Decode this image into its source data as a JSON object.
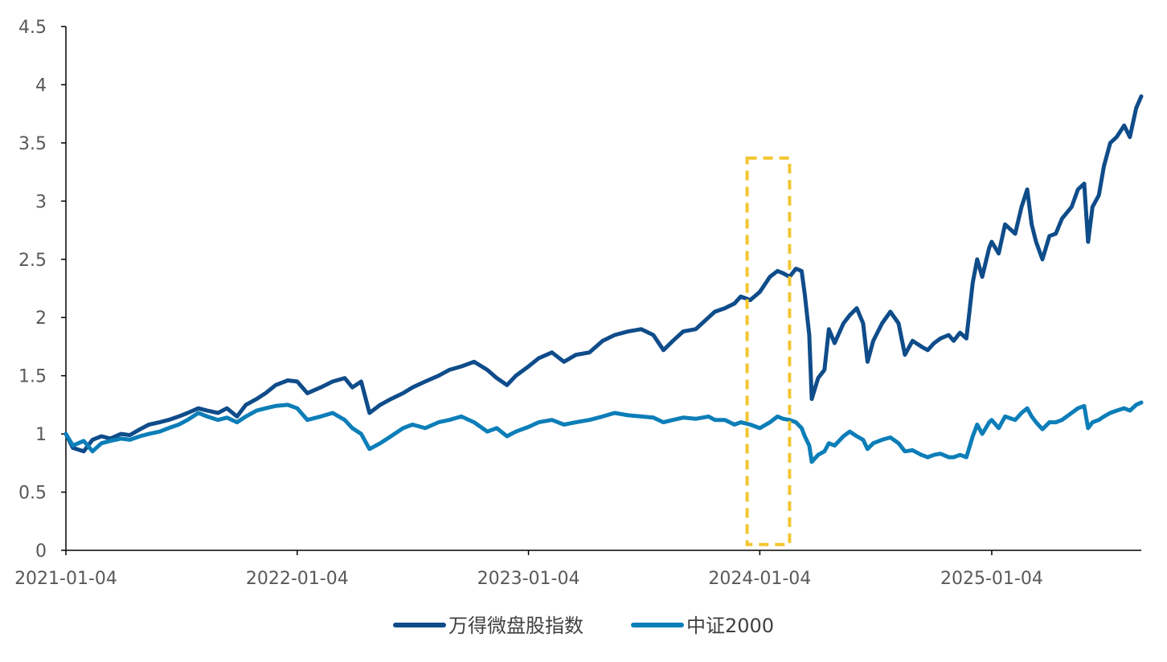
{
  "chart_data": {
    "type": "line",
    "title": "",
    "xlabel": "",
    "ylabel": "",
    "ylim": [
      0,
      4.5
    ],
    "yticks": [
      "0",
      "0.5",
      "1",
      "1.5",
      "2",
      "2.5",
      "3",
      "3.5",
      "4",
      "4.5"
    ],
    "xlim": [
      "2021-01-04",
      "2025-07-15"
    ],
    "xticks": [
      "2021-01-04",
      "2022-01-04",
      "2023-01-04",
      "2024-01-04",
      "2025-01-04"
    ],
    "grid": false,
    "legend_position": "bottom",
    "highlight_box": {
      "x_range": [
        "2023-12-15",
        "2024-02-20"
      ],
      "y_range": [
        0.05,
        3.37
      ],
      "color": "#F2C631",
      "style": "dashed"
    },
    "series": [
      {
        "name": "万得微盘股指数",
        "color": "#0F4C8A",
        "points": [
          [
            "2021-01-04",
            1.0
          ],
          [
            "2021-01-15",
            0.88
          ],
          [
            "2021-02-01",
            0.85
          ],
          [
            "2021-02-15",
            0.95
          ],
          [
            "2021-03-01",
            0.98
          ],
          [
            "2021-03-15",
            0.96
          ],
          [
            "2021-04-01",
            1.0
          ],
          [
            "2021-04-15",
            0.99
          ],
          [
            "2021-05-01",
            1.04
          ],
          [
            "2021-05-15",
            1.08
          ],
          [
            "2021-06-01",
            1.1
          ],
          [
            "2021-06-15",
            1.12
          ],
          [
            "2021-07-01",
            1.15
          ],
          [
            "2021-07-15",
            1.18
          ],
          [
            "2021-08-01",
            1.22
          ],
          [
            "2021-08-15",
            1.2
          ],
          [
            "2021-09-01",
            1.18
          ],
          [
            "2021-09-15",
            1.22
          ],
          [
            "2021-10-01",
            1.15
          ],
          [
            "2021-10-15",
            1.25
          ],
          [
            "2021-11-01",
            1.3
          ],
          [
            "2021-11-15",
            1.35
          ],
          [
            "2021-12-01",
            1.42
          ],
          [
            "2021-12-20",
            1.46
          ],
          [
            "2022-01-04",
            1.45
          ],
          [
            "2022-01-20",
            1.35
          ],
          [
            "2022-02-10",
            1.4
          ],
          [
            "2022-03-01",
            1.45
          ],
          [
            "2022-03-20",
            1.48
          ],
          [
            "2022-04-01",
            1.4
          ],
          [
            "2022-04-15",
            1.45
          ],
          [
            "2022-04-28",
            1.18
          ],
          [
            "2022-05-15",
            1.25
          ],
          [
            "2022-06-01",
            1.3
          ],
          [
            "2022-06-20",
            1.35
          ],
          [
            "2022-07-05",
            1.4
          ],
          [
            "2022-07-25",
            1.45
          ],
          [
            "2022-08-15",
            1.5
          ],
          [
            "2022-09-01",
            1.55
          ],
          [
            "2022-09-20",
            1.58
          ],
          [
            "2022-10-10",
            1.62
          ],
          [
            "2022-10-31",
            1.55
          ],
          [
            "2022-11-15",
            1.48
          ],
          [
            "2022-12-01",
            1.42
          ],
          [
            "2022-12-15",
            1.5
          ],
          [
            "2023-01-04",
            1.58
          ],
          [
            "2023-01-20",
            1.65
          ],
          [
            "2023-02-10",
            1.7
          ],
          [
            "2023-03-01",
            1.62
          ],
          [
            "2023-03-20",
            1.68
          ],
          [
            "2023-04-10",
            1.7
          ],
          [
            "2023-05-01",
            1.8
          ],
          [
            "2023-05-20",
            1.85
          ],
          [
            "2023-06-10",
            1.88
          ],
          [
            "2023-07-01",
            1.9
          ],
          [
            "2023-07-20",
            1.85
          ],
          [
            "2023-08-05",
            1.72
          ],
          [
            "2023-08-20",
            1.8
          ],
          [
            "2023-09-05",
            1.88
          ],
          [
            "2023-09-25",
            1.9
          ],
          [
            "2023-10-15",
            2.0
          ],
          [
            "2023-10-25",
            2.05
          ],
          [
            "2023-11-10",
            2.08
          ],
          [
            "2023-11-25",
            2.12
          ],
          [
            "2023-12-05",
            2.18
          ],
          [
            "2023-12-20",
            2.15
          ],
          [
            "2024-01-04",
            2.22
          ],
          [
            "2024-01-20",
            2.35
          ],
          [
            "2024-02-01",
            2.4
          ],
          [
            "2024-02-10",
            2.38
          ],
          [
            "2024-02-20",
            2.35
          ],
          [
            "2024-03-01",
            2.42
          ],
          [
            "2024-03-10",
            2.4
          ],
          [
            "2024-03-15",
            2.2
          ],
          [
            "2024-03-22",
            1.85
          ],
          [
            "2024-03-26",
            1.3
          ],
          [
            "2024-04-05",
            1.48
          ],
          [
            "2024-04-15",
            1.55
          ],
          [
            "2024-04-22",
            1.9
          ],
          [
            "2024-05-01",
            1.78
          ],
          [
            "2024-05-15",
            1.95
          ],
          [
            "2024-05-25",
            2.02
          ],
          [
            "2024-06-05",
            2.08
          ],
          [
            "2024-06-15",
            1.95
          ],
          [
            "2024-06-22",
            1.62
          ],
          [
            "2024-07-01",
            1.8
          ],
          [
            "2024-07-15",
            1.95
          ],
          [
            "2024-07-28",
            2.05
          ],
          [
            "2024-08-10",
            1.95
          ],
          [
            "2024-08-20",
            1.68
          ],
          [
            "2024-09-01",
            1.8
          ],
          [
            "2024-09-15",
            1.75
          ],
          [
            "2024-09-25",
            1.72
          ],
          [
            "2024-10-05",
            1.78
          ],
          [
            "2024-10-15",
            1.82
          ],
          [
            "2024-10-28",
            1.85
          ],
          [
            "2024-11-05",
            1.8
          ],
          [
            "2024-11-15",
            1.87
          ],
          [
            "2024-11-25",
            1.82
          ],
          [
            "2024-12-05",
            2.3
          ],
          [
            "2024-12-12",
            2.5
          ],
          [
            "2024-12-20",
            2.35
          ],
          [
            "2024-12-31",
            2.6
          ],
          [
            "2025-01-04",
            2.65
          ],
          [
            "2025-01-15",
            2.55
          ],
          [
            "2025-01-25",
            2.8
          ],
          [
            "2025-02-10",
            2.72
          ],
          [
            "2025-02-20",
            2.95
          ],
          [
            "2025-03-01",
            3.1
          ],
          [
            "2025-03-08",
            2.8
          ],
          [
            "2025-03-15",
            2.65
          ],
          [
            "2025-03-25",
            2.5
          ],
          [
            "2025-04-05",
            2.7
          ],
          [
            "2025-04-15",
            2.72
          ],
          [
            "2025-04-25",
            2.85
          ],
          [
            "2025-05-10",
            2.95
          ],
          [
            "2025-05-20",
            3.1
          ],
          [
            "2025-05-30",
            3.15
          ],
          [
            "2025-06-05",
            2.65
          ],
          [
            "2025-06-12",
            2.95
          ],
          [
            "2025-06-22",
            3.05
          ],
          [
            "2025-06-30",
            3.3
          ],
          [
            "2025-07-10",
            3.5
          ],
          [
            "2025-07-20",
            3.55
          ],
          [
            "2025-08-01",
            3.65
          ],
          [
            "2025-08-10",
            3.55
          ],
          [
            "2025-08-20",
            3.8
          ],
          [
            "2025-08-28",
            3.9
          ]
        ]
      },
      {
        "name": "中证2000",
        "color": "#0C7EB8",
        "points": [
          [
            "2021-01-04",
            1.0
          ],
          [
            "2021-01-15",
            0.9
          ],
          [
            "2021-02-01",
            0.94
          ],
          [
            "2021-02-15",
            0.85
          ],
          [
            "2021-03-01",
            0.92
          ],
          [
            "2021-03-15",
            0.94
          ],
          [
            "2021-04-01",
            0.96
          ],
          [
            "2021-04-15",
            0.95
          ],
          [
            "2021-05-01",
            0.98
          ],
          [
            "2021-05-15",
            1.0
          ],
          [
            "2021-06-01",
            1.02
          ],
          [
            "2021-06-15",
            1.05
          ],
          [
            "2021-07-01",
            1.08
          ],
          [
            "2021-07-15",
            1.12
          ],
          [
            "2021-08-01",
            1.18
          ],
          [
            "2021-08-15",
            1.15
          ],
          [
            "2021-09-01",
            1.12
          ],
          [
            "2021-09-15",
            1.14
          ],
          [
            "2021-10-01",
            1.1
          ],
          [
            "2021-10-15",
            1.15
          ],
          [
            "2021-11-01",
            1.2
          ],
          [
            "2021-11-15",
            1.22
          ],
          [
            "2021-12-01",
            1.24
          ],
          [
            "2021-12-20",
            1.25
          ],
          [
            "2022-01-04",
            1.22
          ],
          [
            "2022-01-20",
            1.12
          ],
          [
            "2022-02-10",
            1.15
          ],
          [
            "2022-03-01",
            1.18
          ],
          [
            "2022-03-20",
            1.12
          ],
          [
            "2022-04-01",
            1.05
          ],
          [
            "2022-04-15",
            1.0
          ],
          [
            "2022-04-28",
            0.87
          ],
          [
            "2022-05-15",
            0.92
          ],
          [
            "2022-06-01",
            0.98
          ],
          [
            "2022-06-20",
            1.05
          ],
          [
            "2022-07-05",
            1.08
          ],
          [
            "2022-07-25",
            1.05
          ],
          [
            "2022-08-15",
            1.1
          ],
          [
            "2022-09-01",
            1.12
          ],
          [
            "2022-09-20",
            1.15
          ],
          [
            "2022-10-10",
            1.1
          ],
          [
            "2022-10-31",
            1.02
          ],
          [
            "2022-11-15",
            1.05
          ],
          [
            "2022-12-01",
            0.98
          ],
          [
            "2022-12-15",
            1.02
          ],
          [
            "2023-01-04",
            1.06
          ],
          [
            "2023-01-20",
            1.1
          ],
          [
            "2023-02-10",
            1.12
          ],
          [
            "2023-03-01",
            1.08
          ],
          [
            "2023-03-20",
            1.1
          ],
          [
            "2023-04-10",
            1.12
          ],
          [
            "2023-05-01",
            1.15
          ],
          [
            "2023-05-20",
            1.18
          ],
          [
            "2023-06-10",
            1.16
          ],
          [
            "2023-07-01",
            1.15
          ],
          [
            "2023-07-20",
            1.14
          ],
          [
            "2023-08-05",
            1.1
          ],
          [
            "2023-08-20",
            1.12
          ],
          [
            "2023-09-05",
            1.14
          ],
          [
            "2023-09-25",
            1.13
          ],
          [
            "2023-10-15",
            1.15
          ],
          [
            "2023-10-25",
            1.12
          ],
          [
            "2023-11-10",
            1.12
          ],
          [
            "2023-11-25",
            1.08
          ],
          [
            "2023-12-05",
            1.1
          ],
          [
            "2023-12-20",
            1.08
          ],
          [
            "2024-01-04",
            1.05
          ],
          [
            "2024-01-20",
            1.1
          ],
          [
            "2024-02-01",
            1.15
          ],
          [
            "2024-02-10",
            1.13
          ],
          [
            "2024-02-20",
            1.12
          ],
          [
            "2024-03-01",
            1.1
          ],
          [
            "2024-03-10",
            1.05
          ],
          [
            "2024-03-15",
            0.98
          ],
          [
            "2024-03-22",
            0.9
          ],
          [
            "2024-03-26",
            0.76
          ],
          [
            "2024-04-05",
            0.82
          ],
          [
            "2024-04-15",
            0.85
          ],
          [
            "2024-04-22",
            0.92
          ],
          [
            "2024-05-01",
            0.9
          ],
          [
            "2024-05-15",
            0.98
          ],
          [
            "2024-05-25",
            1.02
          ],
          [
            "2024-06-05",
            0.98
          ],
          [
            "2024-06-15",
            0.95
          ],
          [
            "2024-06-22",
            0.87
          ],
          [
            "2024-07-01",
            0.92
          ],
          [
            "2024-07-15",
            0.95
          ],
          [
            "2024-07-28",
            0.97
          ],
          [
            "2024-08-10",
            0.92
          ],
          [
            "2024-08-20",
            0.85
          ],
          [
            "2024-09-01",
            0.86
          ],
          [
            "2024-09-15",
            0.82
          ],
          [
            "2024-09-25",
            0.8
          ],
          [
            "2024-10-05",
            0.82
          ],
          [
            "2024-10-15",
            0.83
          ],
          [
            "2024-10-28",
            0.8
          ],
          [
            "2024-11-05",
            0.8
          ],
          [
            "2024-11-15",
            0.82
          ],
          [
            "2024-11-25",
            0.8
          ],
          [
            "2024-12-05",
            0.98
          ],
          [
            "2024-12-12",
            1.08
          ],
          [
            "2024-12-20",
            1.0
          ],
          [
            "2024-12-31",
            1.1
          ],
          [
            "2025-01-04",
            1.12
          ],
          [
            "2025-01-15",
            1.05
          ],
          [
            "2025-01-25",
            1.15
          ],
          [
            "2025-02-10",
            1.12
          ],
          [
            "2025-02-20",
            1.18
          ],
          [
            "2025-03-01",
            1.22
          ],
          [
            "2025-03-08",
            1.15
          ],
          [
            "2025-03-15",
            1.1
          ],
          [
            "2025-03-25",
            1.04
          ],
          [
            "2025-04-05",
            1.1
          ],
          [
            "2025-04-15",
            1.1
          ],
          [
            "2025-04-25",
            1.12
          ],
          [
            "2025-05-10",
            1.18
          ],
          [
            "2025-05-20",
            1.22
          ],
          [
            "2025-05-30",
            1.24
          ],
          [
            "2025-06-05",
            1.05
          ],
          [
            "2025-06-12",
            1.1
          ],
          [
            "2025-06-22",
            1.12
          ],
          [
            "2025-06-30",
            1.15
          ],
          [
            "2025-07-10",
            1.18
          ],
          [
            "2025-07-20",
            1.2
          ],
          [
            "2025-08-01",
            1.22
          ],
          [
            "2025-08-10",
            1.2
          ],
          [
            "2025-08-20",
            1.25
          ],
          [
            "2025-08-28",
            1.27
          ]
        ]
      }
    ]
  }
}
